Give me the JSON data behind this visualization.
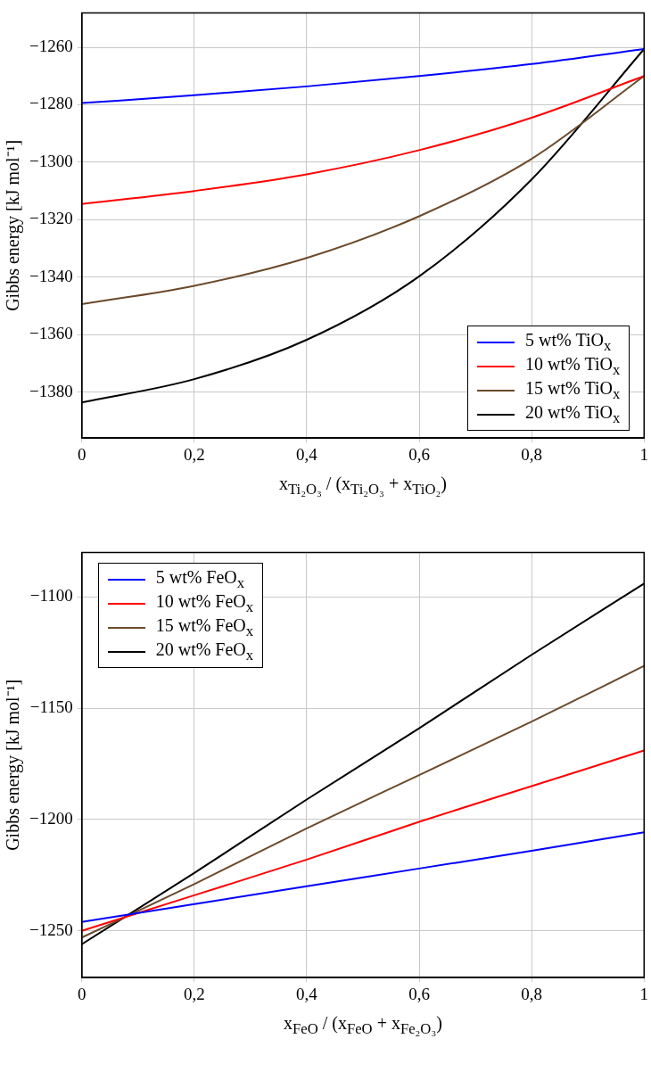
{
  "chart_data": [
    {
      "type": "line",
      "xlabel": "x$_{Ti₂O₃}$ / (x$_{Ti₂O₃}$ + x$_{TiO₂}$)",
      "ylabel": "Gibbs energy [kJ mol⁻¹]",
      "x": [
        0,
        0.2,
        0.4,
        0.6,
        0.8,
        1
      ],
      "series": [
        {
          "name": "5 wt% TiO$_{x}$",
          "color": "#0000ff",
          "values": [
            -1279.4,
            -1276.7,
            -1273.6,
            -1270,
            -1265.8,
            -1260.6
          ]
        },
        {
          "name": "10 wt% TiO$_{x}$",
          "color": "#ff0000",
          "values": [
            -1314.5,
            -1310,
            -1304.2,
            -1295.8,
            -1284.5,
            -1270
          ]
        },
        {
          "name": "15 wt% TiO$_{x}$",
          "color": "#6b4a2b",
          "values": [
            -1349.4,
            -1343,
            -1333.3,
            -1318.8,
            -1298.8,
            -1270
          ]
        },
        {
          "name": "20 wt% TiO$_{x}$",
          "color": "#000000",
          "values": [
            -1383.6,
            -1375.5,
            -1361.8,
            -1339.7,
            -1306,
            -1260.6
          ]
        }
      ],
      "xlim": [
        0,
        1
      ],
      "ylim": [
        -1396,
        -1248
      ],
      "xticks": [
        {
          "value": 0,
          "label": "0"
        },
        {
          "value": 0.2,
          "label": "0,2"
        },
        {
          "value": 0.4,
          "label": "0,4"
        },
        {
          "value": 0.6,
          "label": "0,6"
        },
        {
          "value": 0.8,
          "label": "0,8"
        },
        {
          "value": 1,
          "label": "1"
        }
      ],
      "yticks": [
        -1380,
        -1360,
        -1340,
        -1320,
        -1300,
        -1280,
        -1260
      ],
      "grid": true,
      "legend": "bottom right",
      "marker": "none",
      "line_style": "solid"
    },
    {
      "type": "line",
      "xlabel": "x$_{FeO}$ / (x$_{FeO}$ + x$_{Fe₂O₃}$)",
      "ylabel": "Gibbs energy [kJ mol⁻¹]",
      "x": [
        0,
        0.2,
        0.4,
        0.6,
        0.8,
        1
      ],
      "series": [
        {
          "name": "5 wt% FeO$_{x}$",
          "color": "#0000ff",
          "values": [
            -1246,
            -1238,
            -1230,
            -1222,
            -1214,
            -1205.7
          ]
        },
        {
          "name": "10 wt% FeO$_{x}$",
          "color": "#ff0000",
          "values": [
            -1250,
            -1234,
            -1218,
            -1201,
            -1185,
            -1169
          ]
        },
        {
          "name": "15 wt% FeO$_{x}$",
          "color": "#6b4a2b",
          "values": [
            -1253,
            -1229,
            -1204,
            -1180,
            -1156,
            -1131
          ]
        },
        {
          "name": "20 wt% FeO$_{x}$",
          "color": "#000000",
          "values": [
            -1256,
            -1224,
            -1191,
            -1159,
            -1126,
            -1094
          ]
        }
      ],
      "xlim": [
        0,
        1
      ],
      "ylim": [
        -1271,
        -1080
      ],
      "xticks": [
        {
          "value": 0,
          "label": "0"
        },
        {
          "value": 0.2,
          "label": "0,2"
        },
        {
          "value": 0.4,
          "label": "0,4"
        },
        {
          "value": 0.6,
          "label": "0,6"
        },
        {
          "value": 0.8,
          "label": "0,8"
        },
        {
          "value": 1,
          "label": "1"
        }
      ],
      "yticks": [
        -1250,
        -1200,
        -1150,
        -1100
      ],
      "grid": true,
      "legend": "top left",
      "marker": "none",
      "line_style": "solid"
    }
  ]
}
